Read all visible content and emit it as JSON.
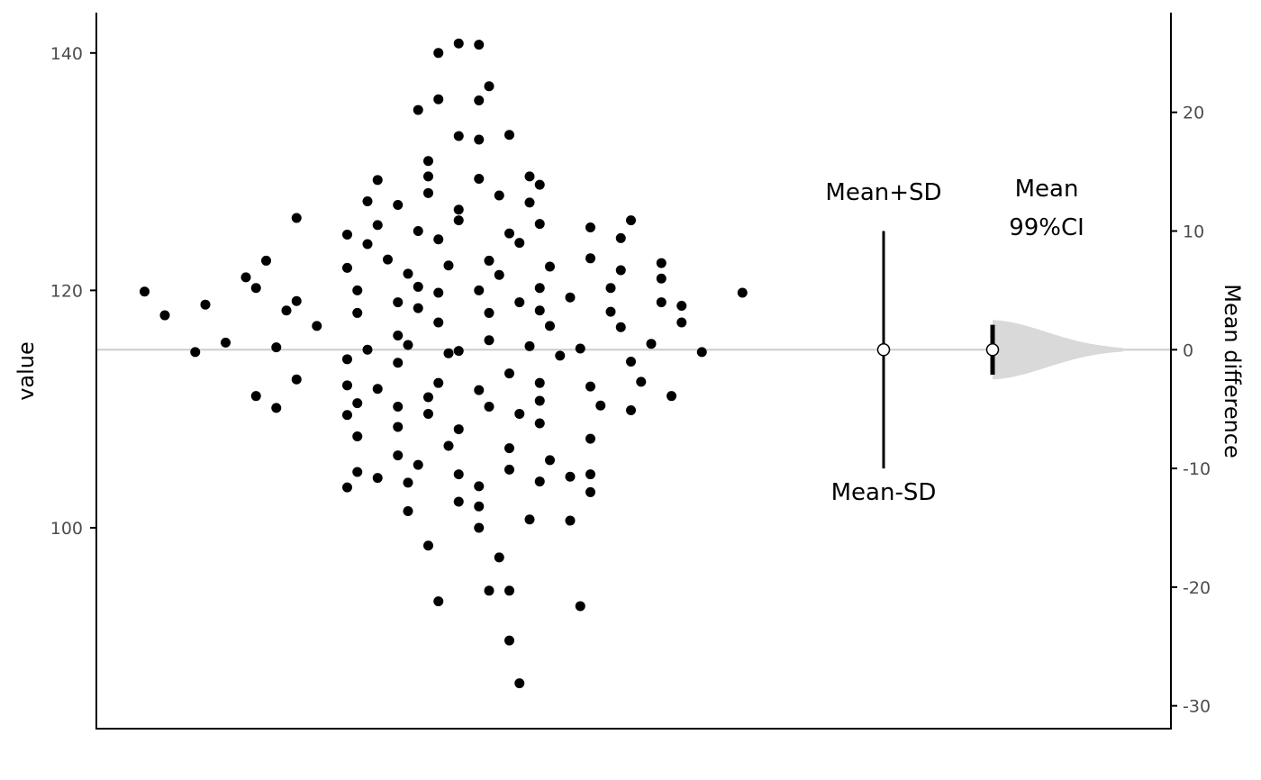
{
  "chart_data": {
    "type": "scatter",
    "title": "",
    "ylabel": "value",
    "y2label": "Mean difference",
    "ylim": [
      83,
      143.4
    ],
    "y_ticks": [
      100,
      120,
      140
    ],
    "y2_ticks": [
      -30,
      -20,
      -10,
      0,
      10,
      20
    ],
    "mean": 115,
    "sd": 10,
    "ci_level": "99%",
    "ci": [
      -2.1,
      2.1
    ],
    "annotations": {
      "mean_plus_sd": "Mean+SD",
      "mean_minus_sd": "Mean-SD",
      "mean": "Mean",
      "ci": "99%CI"
    },
    "grid": false,
    "reference_line_at": 0,
    "colors": {
      "points": "#000000",
      "reference_line": "#cccccc",
      "density": "#d9d9d9",
      "axis": "#000000"
    },
    "points": [
      {
        "x": 0.07,
        "y": 86.9
      },
      {
        "x": 0.06,
        "y": 90.5
      },
      {
        "x": -0.01,
        "y": 93.8
      },
      {
        "x": 0.04,
        "y": 94.7
      },
      {
        "x": 0.06,
        "y": 94.7
      },
      {
        "x": 0.13,
        "y": 93.4
      },
      {
        "x": 0.05,
        "y": 97.5
      },
      {
        "x": 0.03,
        "y": 100.0
      },
      {
        "x": -0.02,
        "y": 98.5
      },
      {
        "x": 0.12,
        "y": 100.6
      },
      {
        "x": 0.08,
        "y": 100.7
      },
      {
        "x": 0.03,
        "y": 101.8
      },
      {
        "x": 0.01,
        "y": 102.2
      },
      {
        "x": -0.04,
        "y": 101.4
      },
      {
        "x": 0.14,
        "y": 103.0
      },
      {
        "x": -0.1,
        "y": 103.4
      },
      {
        "x": 0.03,
        "y": 103.5
      },
      {
        "x": -0.04,
        "y": 103.8
      },
      {
        "x": 0.09,
        "y": 103.9
      },
      {
        "x": -0.07,
        "y": 104.2
      },
      {
        "x": 0.12,
        "y": 104.3
      },
      {
        "x": -0.09,
        "y": 104.7
      },
      {
        "x": 0.01,
        "y": 104.5
      },
      {
        "x": 0.06,
        "y": 104.9
      },
      {
        "x": 0.14,
        "y": 104.5
      },
      {
        "x": -0.03,
        "y": 105.3
      },
      {
        "x": 0.1,
        "y": 105.7
      },
      {
        "x": -0.05,
        "y": 106.1
      },
      {
        "x": 0.06,
        "y": 106.7
      },
      {
        "x": 0.0,
        "y": 106.9
      },
      {
        "x": 0.14,
        "y": 107.5
      },
      {
        "x": -0.09,
        "y": 107.7
      },
      {
        "x": 0.01,
        "y": 108.3
      },
      {
        "x": -0.05,
        "y": 108.5
      },
      {
        "x": 0.09,
        "y": 108.8
      },
      {
        "x": -0.1,
        "y": 109.5
      },
      {
        "x": -0.02,
        "y": 109.6
      },
      {
        "x": 0.07,
        "y": 109.6
      },
      {
        "x": 0.18,
        "y": 109.9
      },
      {
        "x": -0.17,
        "y": 110.1
      },
      {
        "x": 0.04,
        "y": 110.2
      },
      {
        "x": -0.05,
        "y": 110.2
      },
      {
        "x": 0.15,
        "y": 110.3
      },
      {
        "x": -0.09,
        "y": 110.5
      },
      {
        "x": 0.09,
        "y": 110.7
      },
      {
        "x": -0.19,
        "y": 111.1
      },
      {
        "x": 0.22,
        "y": 111.1
      },
      {
        "x": -0.02,
        "y": 111.0
      },
      {
        "x": 0.03,
        "y": 111.6
      },
      {
        "x": -0.07,
        "y": 111.7
      },
      {
        "x": 0.14,
        "y": 111.9
      },
      {
        "x": -0.1,
        "y": 112.0
      },
      {
        "x": 0.09,
        "y": 112.2
      },
      {
        "x": -0.01,
        "y": 112.2
      },
      {
        "x": 0.19,
        "y": 112.3
      },
      {
        "x": -0.15,
        "y": 112.5
      },
      {
        "x": 0.06,
        "y": 113.0
      },
      {
        "x": -0.05,
        "y": 113.9
      },
      {
        "x": 0.18,
        "y": 114.0
      },
      {
        "x": -0.1,
        "y": 114.2
      },
      {
        "x": 0.11,
        "y": 114.5
      },
      {
        "x": 0.0,
        "y": 114.7
      },
      {
        "x": 0.01,
        "y": 114.9
      },
      {
        "x": 0.25,
        "y": 114.8
      },
      {
        "x": -0.25,
        "y": 114.8
      },
      {
        "x": -0.08,
        "y": 115.0
      },
      {
        "x": 0.13,
        "y": 115.1
      },
      {
        "x": 0.08,
        "y": 115.3
      },
      {
        "x": -0.17,
        "y": 115.2
      },
      {
        "x": -0.04,
        "y": 115.4
      },
      {
        "x": 0.2,
        "y": 115.5
      },
      {
        "x": -0.22,
        "y": 115.6
      },
      {
        "x": 0.04,
        "y": 115.8
      },
      {
        "x": -0.05,
        "y": 116.2
      },
      {
        "x": 0.17,
        "y": 116.9
      },
      {
        "x": -0.13,
        "y": 117.0
      },
      {
        "x": 0.1,
        "y": 117.0
      },
      {
        "x": -0.01,
        "y": 117.3
      },
      {
        "x": 0.23,
        "y": 117.3
      },
      {
        "x": 0.04,
        "y": 118.1
      },
      {
        "x": 0.16,
        "y": 118.2
      },
      {
        "x": -0.09,
        "y": 118.1
      },
      {
        "x": -0.16,
        "y": 118.3
      },
      {
        "x": -0.28,
        "y": 117.9
      },
      {
        "x": 0.09,
        "y": 118.3
      },
      {
        "x": -0.03,
        "y": 118.5
      },
      {
        "x": -0.24,
        "y": 118.8
      },
      {
        "x": 0.23,
        "y": 118.7
      },
      {
        "x": 0.07,
        "y": 119.0
      },
      {
        "x": -0.15,
        "y": 119.1
      },
      {
        "x": -0.05,
        "y": 119.0
      },
      {
        "x": 0.21,
        "y": 119.0
      },
      {
        "x": 0.12,
        "y": 119.4
      },
      {
        "x": -0.01,
        "y": 119.8
      },
      {
        "x": 0.03,
        "y": 120.0
      },
      {
        "x": -0.09,
        "y": 120.0
      },
      {
        "x": 0.16,
        "y": 120.2
      },
      {
        "x": -0.03,
        "y": 120.3
      },
      {
        "x": 0.09,
        "y": 120.2
      },
      {
        "x": -0.19,
        "y": 120.2
      },
      {
        "x": 0.29,
        "y": 119.8
      },
      {
        "x": -0.3,
        "y": 119.9
      },
      {
        "x": -0.2,
        "y": 121.1
      },
      {
        "x": 0.21,
        "y": 121.0
      },
      {
        "x": -0.04,
        "y": 121.4
      },
      {
        "x": 0.05,
        "y": 121.3
      },
      {
        "x": 0.17,
        "y": 121.7
      },
      {
        "x": -0.1,
        "y": 121.9
      },
      {
        "x": 0.1,
        "y": 122.0
      },
      {
        "x": 0.0,
        "y": 122.1
      },
      {
        "x": -0.18,
        "y": 122.5
      },
      {
        "x": 0.04,
        "y": 122.5
      },
      {
        "x": 0.14,
        "y": 122.7
      },
      {
        "x": 0.21,
        "y": 122.3
      },
      {
        "x": -0.06,
        "y": 122.6
      },
      {
        "x": -0.08,
        "y": 123.9
      },
      {
        "x": 0.07,
        "y": 124.0
      },
      {
        "x": 0.17,
        "y": 124.4
      },
      {
        "x": -0.01,
        "y": 124.3
      },
      {
        "x": -0.1,
        "y": 124.7
      },
      {
        "x": 0.06,
        "y": 124.8
      },
      {
        "x": -0.03,
        "y": 125.0
      },
      {
        "x": 0.14,
        "y": 125.3
      },
      {
        "x": -0.07,
        "y": 125.5
      },
      {
        "x": 0.09,
        "y": 125.6
      },
      {
        "x": 0.18,
        "y": 125.9
      },
      {
        "x": 0.01,
        "y": 125.9
      },
      {
        "x": -0.15,
        "y": 126.1
      },
      {
        "x": 0.01,
        "y": 126.8
      },
      {
        "x": 0.08,
        "y": 127.4
      },
      {
        "x": -0.05,
        "y": 127.2
      },
      {
        "x": -0.08,
        "y": 127.5
      },
      {
        "x": 0.05,
        "y": 128.0
      },
      {
        "x": -0.02,
        "y": 128.2
      },
      {
        "x": 0.09,
        "y": 128.9
      },
      {
        "x": 0.03,
        "y": 129.4
      },
      {
        "x": -0.07,
        "y": 129.3
      },
      {
        "x": 0.08,
        "y": 129.6
      },
      {
        "x": -0.02,
        "y": 129.6
      },
      {
        "x": -0.02,
        "y": 130.9
      },
      {
        "x": 0.06,
        "y": 133.1
      },
      {
        "x": 0.01,
        "y": 133.0
      },
      {
        "x": 0.03,
        "y": 132.7
      },
      {
        "x": -0.03,
        "y": 135.2
      },
      {
        "x": -0.01,
        "y": 136.1
      },
      {
        "x": 0.03,
        "y": 136.0
      },
      {
        "x": 0.04,
        "y": 137.2
      },
      {
        "x": -0.01,
        "y": 140.0
      },
      {
        "x": 0.01,
        "y": 140.8
      },
      {
        "x": 0.03,
        "y": 140.7
      }
    ]
  }
}
